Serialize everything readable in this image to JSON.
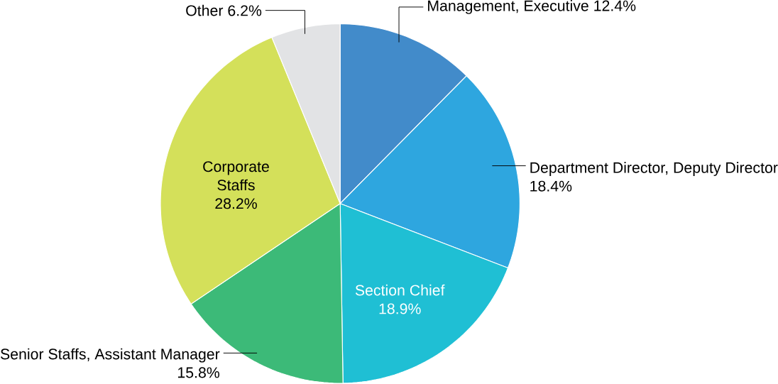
{
  "chart_data": {
    "type": "pie",
    "categories": [
      "Management, Executive",
      "Department Director, Deputy Director",
      "Section Chief",
      "Senior Staffs, Assistant Manager",
      "Corporate Staffs",
      "Other"
    ],
    "values": [
      12.4,
      18.4,
      18.9,
      15.8,
      28.2,
      6.2
    ],
    "value_labels": [
      "12.4%",
      "18.4%",
      "18.9%",
      "15.8%",
      "28.2%",
      "6.2%"
    ],
    "colors": [
      "#428bca",
      "#2ea6df",
      "#1fbfd4",
      "#3cba78",
      "#d4e05a",
      "#e2e3e5"
    ]
  }
}
